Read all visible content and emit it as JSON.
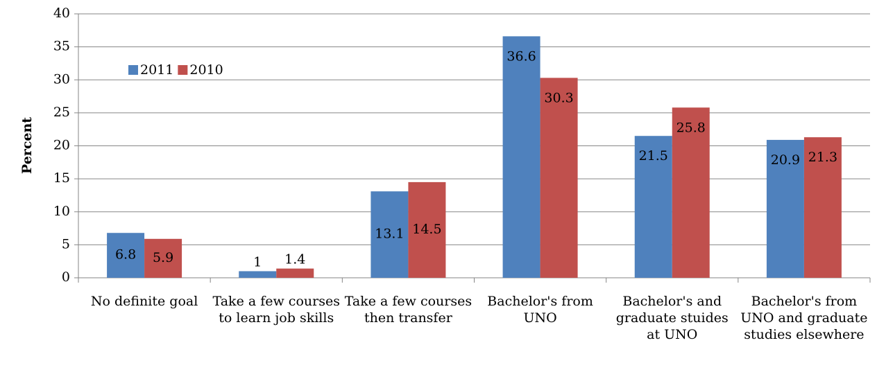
{
  "chart_data": {
    "type": "bar",
    "y_label": "Percent",
    "categories": [
      "No definite goal",
      "Take a few courses to learn job skills",
      "Take a few courses then transfer",
      "Bachelor's from UNO",
      "Bachelor's and graduate stuides at UNO",
      "Bachelor's from UNO and graduate studies elsewhere"
    ],
    "series": [
      {
        "name": "2011",
        "color": "#4f81bd",
        "values": [
          6.8,
          1,
          13.1,
          36.6,
          21.5,
          20.9
        ]
      },
      {
        "name": "2010",
        "color": "#c0504d",
        "values": [
          5.9,
          1.4,
          14.5,
          30.3,
          25.8,
          21.3
        ]
      }
    ],
    "ylim": [
      0,
      40
    ],
    "yticks": [
      0,
      5,
      10,
      15,
      20,
      25,
      30,
      35,
      40
    ],
    "grid": true,
    "legend": "top-left"
  }
}
